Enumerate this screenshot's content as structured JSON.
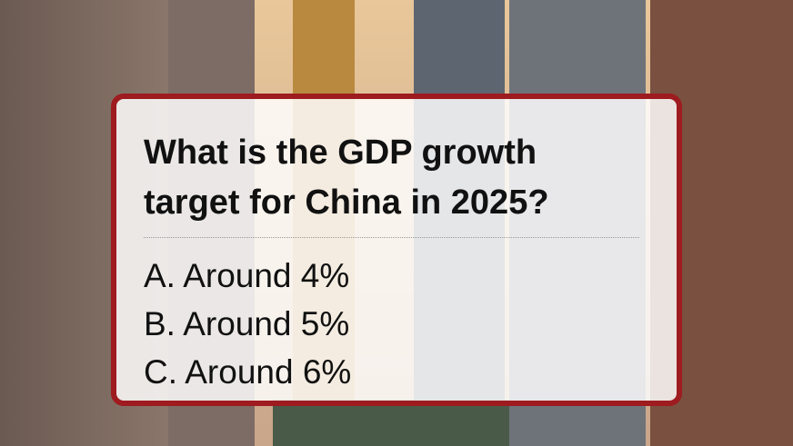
{
  "question": "What is the GDP growth target for China in 2025?",
  "options": [
    "A. Around 4%",
    "B. Around 5%",
    "C. Around 6%"
  ]
}
